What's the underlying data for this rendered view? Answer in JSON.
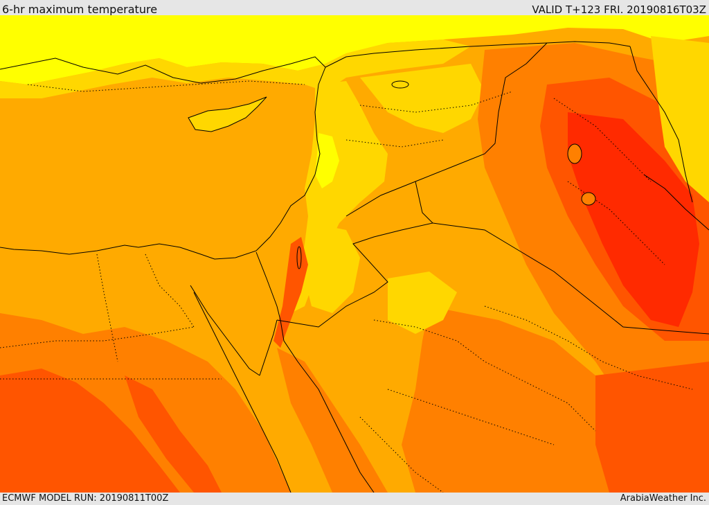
{
  "header": {
    "title": "6-hr maximum temperature",
    "valid": "VALID T+123 FRI. 20190816T03Z"
  },
  "footer": {
    "model_run": "ECMWF MODEL RUN: 20190811T00Z",
    "credit": "ArabiaWeather Inc."
  },
  "map": {
    "region": "Eastern Mediterranean, Levant, Iraq, northern Arabia, Egypt",
    "field": "6-hr maximum temperature",
    "colors": {
      "sea": "#ffaa00",
      "yellow": "#ffff00",
      "gold": "#ffd700",
      "amber": "#ffaa00",
      "orange": "#ff8000",
      "red_orange": "#ff5500",
      "red": "#ff2a00",
      "coast": "#000000",
      "border_dotted": "#000000"
    }
  }
}
